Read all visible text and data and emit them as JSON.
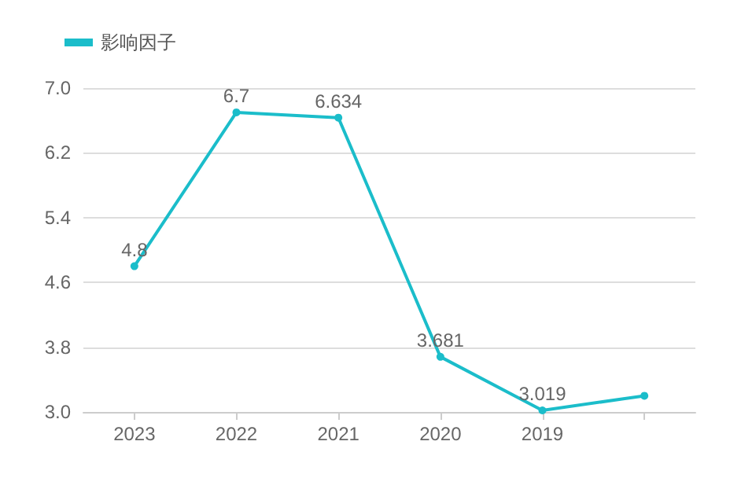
{
  "chart_data": {
    "type": "line",
    "categories": [
      "2023",
      "2022",
      "2021",
      "2020",
      "2019",
      null
    ],
    "series": [
      {
        "name": "影响因子",
        "color": "#1bbdca",
        "values": [
          4.8,
          6.7,
          6.634,
          3.681,
          3.019,
          3.2
        ],
        "value_labels": [
          "4.8",
          "6.7",
          "6.634",
          "3.681",
          "3.019",
          null
        ]
      }
    ],
    "ylim": [
      3.0,
      7.0
    ],
    "yticks": [
      {
        "value": 3.0,
        "label": "3.0"
      },
      {
        "value": 3.8,
        "label": "3.8"
      },
      {
        "value": 4.6,
        "label": "4.6"
      },
      {
        "value": 5.4,
        "label": "5.4"
      },
      {
        "value": 6.2,
        "label": "6.2"
      },
      {
        "value": 7.0,
        "label": "7.0"
      }
    ],
    "grid": "y",
    "legend": "top left",
    "marker": "circle",
    "line_style": "solid"
  }
}
